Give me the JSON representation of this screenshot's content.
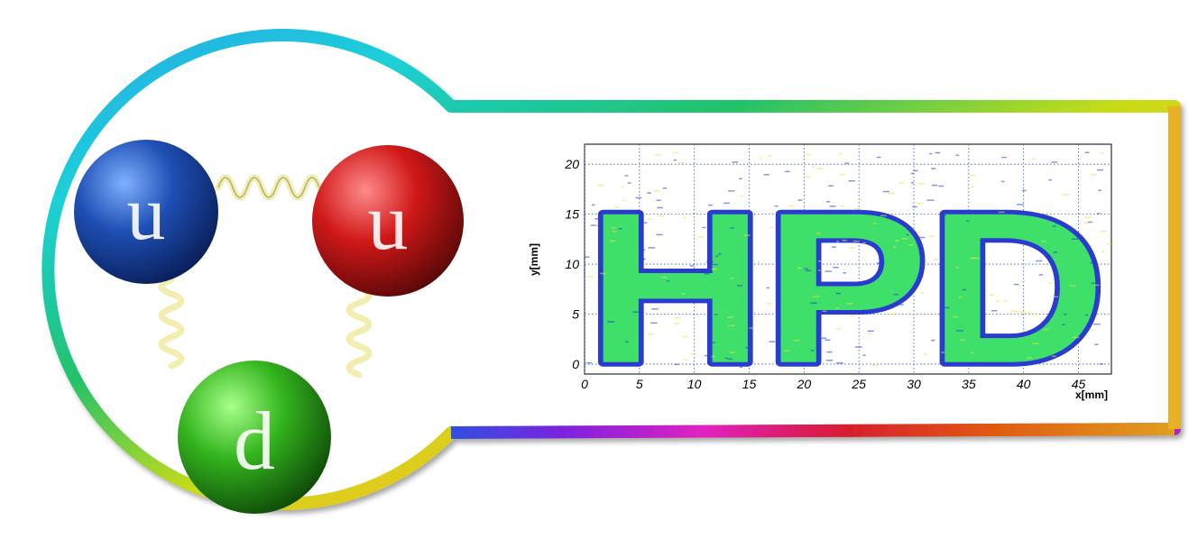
{
  "quarks": [
    {
      "label": "u",
      "color": "#1e4fb4"
    },
    {
      "label": "u",
      "color": "#d01818"
    },
    {
      "label": "d",
      "color": "#34b51e"
    }
  ],
  "colors": {
    "frame_gradient": [
      "#1ad0d8",
      "#22c26a",
      "#8fd21c",
      "#f0e020",
      "#f0a020",
      "#e05a10",
      "#e020b0",
      "#7a24e0",
      "#2060e0"
    ],
    "hist_fill": "#3fe06a",
    "hist_edge": "#2a3cd0",
    "hist_hot": "#f0e040",
    "gluon": "#f2eeb0"
  },
  "chart_data": {
    "type": "heatmap",
    "title": "",
    "xlabel": "x[mm]",
    "ylabel": "y[mm]",
    "xlim": [
      0,
      48
    ],
    "ylim": [
      -1,
      22
    ],
    "x_ticks": [
      "0",
      "5",
      "10",
      "15",
      "20",
      "25",
      "30",
      "35",
      "40",
      "45"
    ],
    "y_ticks": [
      "0",
      "5",
      "10",
      "15",
      "20"
    ],
    "grid": true,
    "image_text": "HPD"
  }
}
